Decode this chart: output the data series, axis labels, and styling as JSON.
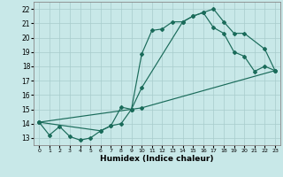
{
  "xlabel": "Humidex (Indice chaleur)",
  "xlim": [
    -0.5,
    23.5
  ],
  "ylim": [
    12.5,
    22.5
  ],
  "xticks": [
    0,
    1,
    2,
    3,
    4,
    5,
    6,
    7,
    8,
    9,
    10,
    11,
    12,
    13,
    14,
    15,
    16,
    17,
    18,
    19,
    20,
    21,
    22,
    23
  ],
  "yticks": [
    13,
    14,
    15,
    16,
    17,
    18,
    19,
    20,
    21,
    22
  ],
  "bg_color": "#c8e8e8",
  "grid_color": "#a8cccc",
  "line_color": "#1a6b5a",
  "line1_x": [
    0,
    1,
    2,
    3,
    4,
    5,
    6,
    7,
    8,
    9,
    10,
    11,
    12,
    13,
    14,
    15,
    16,
    17,
    18,
    19,
    20,
    21,
    22,
    23
  ],
  "line1_y": [
    14.1,
    13.2,
    13.8,
    13.1,
    12.85,
    13.0,
    13.5,
    13.85,
    15.15,
    15.0,
    18.85,
    20.5,
    20.6,
    21.1,
    21.1,
    21.5,
    21.75,
    20.7,
    20.3,
    19.0,
    18.7,
    17.65,
    18.0,
    17.7
  ],
  "line2_x": [
    0,
    6,
    7,
    8,
    9,
    10,
    14,
    15,
    16,
    17,
    18,
    19,
    20,
    22,
    23
  ],
  "line2_y": [
    14.1,
    13.5,
    13.85,
    14.0,
    15.0,
    16.5,
    21.1,
    21.5,
    21.75,
    22.0,
    21.1,
    20.3,
    20.3,
    19.2,
    17.7
  ],
  "line3_x": [
    0,
    9,
    10,
    23
  ],
  "line3_y": [
    14.1,
    15.0,
    15.1,
    17.7
  ]
}
